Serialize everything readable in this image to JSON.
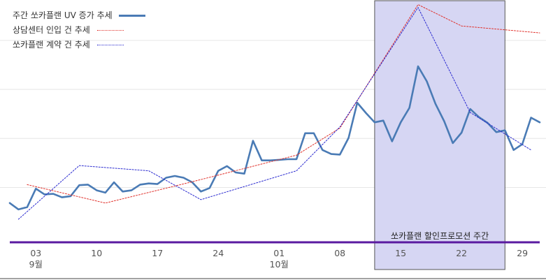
{
  "chart_data": {
    "type": "line",
    "legend": [
      {
        "name": "주간 쏘카플랜 UV 증가 추세",
        "style": "solid",
        "color": "#4a7bb5"
      },
      {
        "name": "상담센터 인입 건 추세",
        "style": "dotted",
        "color": "#e0302a"
      },
      {
        "name": "쏘카플랜 계약 건 추세",
        "style": "dotted",
        "color": "#2a2ad0"
      }
    ],
    "legend_position": "top-left",
    "grid": "horizontal",
    "x_domain": [
      "2020-08-31",
      "2020-10-31"
    ],
    "x_ticks": [
      {
        "date": "2020-09-03",
        "label": "03",
        "sublabel": "9월"
      },
      {
        "date": "2020-09-10",
        "label": "10"
      },
      {
        "date": "2020-09-17",
        "label": "17"
      },
      {
        "date": "2020-09-24",
        "label": "24"
      },
      {
        "date": "2020-10-01",
        "label": "01",
        "sublabel": "10월"
      },
      {
        "date": "2020-10-08",
        "label": "08"
      },
      {
        "date": "2020-10-15",
        "label": "15"
      },
      {
        "date": "2020-10-22",
        "label": "22"
      },
      {
        "date": "2020-10-29",
        "label": "29"
      }
    ],
    "y_axis": {
      "labels_shown": false,
      "range": [
        0,
        420
      ],
      "gridlines": [
        95,
        180,
        265,
        350
      ]
    },
    "shaded_region": {
      "start": "2020-10-12",
      "end": "2020-10-27",
      "label": "쏘카플랜 할인프로모션 주간",
      "color": "#d6d6f3"
    },
    "baseline_color": "#5a1aa0",
    "series": [
      {
        "name": "주간 쏘카플랜 UV 증가 추세",
        "color": "#4a7bb5",
        "style": "solid",
        "points": [
          [
            "2020-08-31",
            68
          ],
          [
            "2020-09-01",
            57
          ],
          [
            "2020-09-02",
            61
          ],
          [
            "2020-09-03",
            93
          ],
          [
            "2020-09-04",
            83
          ],
          [
            "2020-09-05",
            84
          ],
          [
            "2020-09-06",
            78
          ],
          [
            "2020-09-07",
            80
          ],
          [
            "2020-09-08",
            99
          ],
          [
            "2020-09-09",
            100
          ],
          [
            "2020-09-10",
            90
          ],
          [
            "2020-09-11",
            86
          ],
          [
            "2020-09-12",
            104
          ],
          [
            "2020-09-13",
            88
          ],
          [
            "2020-09-14",
            90
          ],
          [
            "2020-09-15",
            100
          ],
          [
            "2020-09-16",
            102
          ],
          [
            "2020-09-17",
            101
          ],
          [
            "2020-09-18",
            112
          ],
          [
            "2020-09-19",
            115
          ],
          [
            "2020-09-20",
            112
          ],
          [
            "2020-09-21",
            104
          ],
          [
            "2020-09-22",
            88
          ],
          [
            "2020-09-23",
            94
          ],
          [
            "2020-09-24",
            124
          ],
          [
            "2020-09-25",
            132
          ],
          [
            "2020-09-26",
            121
          ],
          [
            "2020-09-27",
            119
          ],
          [
            "2020-09-28",
            176
          ],
          [
            "2020-09-29",
            142
          ],
          [
            "2020-09-30",
            142
          ],
          [
            "2020-10-01",
            143
          ],
          [
            "2020-10-02",
            144
          ],
          [
            "2020-10-03",
            144
          ],
          [
            "2020-10-04",
            189
          ],
          [
            "2020-10-05",
            189
          ],
          [
            "2020-10-06",
            160
          ],
          [
            "2020-10-07",
            153
          ],
          [
            "2020-10-08",
            152
          ],
          [
            "2020-10-09",
            181
          ],
          [
            "2020-10-10",
            242
          ],
          [
            "2020-10-11",
            224
          ],
          [
            "2020-10-12",
            208
          ],
          [
            "2020-10-13",
            211
          ],
          [
            "2020-10-14",
            175
          ],
          [
            "2020-10-15",
            208
          ],
          [
            "2020-10-16",
            233
          ],
          [
            "2020-10-17",
            305
          ],
          [
            "2020-10-18",
            279
          ],
          [
            "2020-10-19",
            240
          ],
          [
            "2020-10-20",
            210
          ],
          [
            "2020-10-21",
            172
          ],
          [
            "2020-10-22",
            190
          ],
          [
            "2020-10-23",
            231
          ],
          [
            "2020-10-24",
            217
          ],
          [
            "2020-10-25",
            207
          ],
          [
            "2020-10-26",
            191
          ],
          [
            "2020-10-27",
            194
          ],
          [
            "2020-10-28",
            160
          ],
          [
            "2020-10-29",
            170
          ],
          [
            "2020-10-30",
            216
          ],
          [
            "2020-10-31",
            208
          ]
        ]
      },
      {
        "name": "상담센터 인입 건 추세",
        "color": "#e0302a",
        "style": "dotted",
        "points": [
          [
            "2020-09-02",
            100
          ],
          [
            "2020-09-11",
            68
          ],
          [
            "2020-09-21",
            105
          ],
          [
            "2020-10-03",
            151
          ],
          [
            "2020-10-08",
            198
          ],
          [
            "2020-10-17",
            412
          ],
          [
            "2020-10-22",
            375
          ],
          [
            "2020-10-31",
            363
          ]
        ]
      },
      {
        "name": "쏘카플랜 계약 건 추세",
        "color": "#2a2ad0",
        "style": "dotted",
        "points": [
          [
            "2020-09-01",
            40
          ],
          [
            "2020-09-08",
            133
          ],
          [
            "2020-09-16",
            124
          ],
          [
            "2020-09-22",
            74
          ],
          [
            "2020-10-03",
            124
          ],
          [
            "2020-10-08",
            200
          ],
          [
            "2020-10-17",
            407
          ],
          [
            "2020-10-23",
            225
          ],
          [
            "2020-10-30",
            160
          ]
        ]
      }
    ]
  }
}
